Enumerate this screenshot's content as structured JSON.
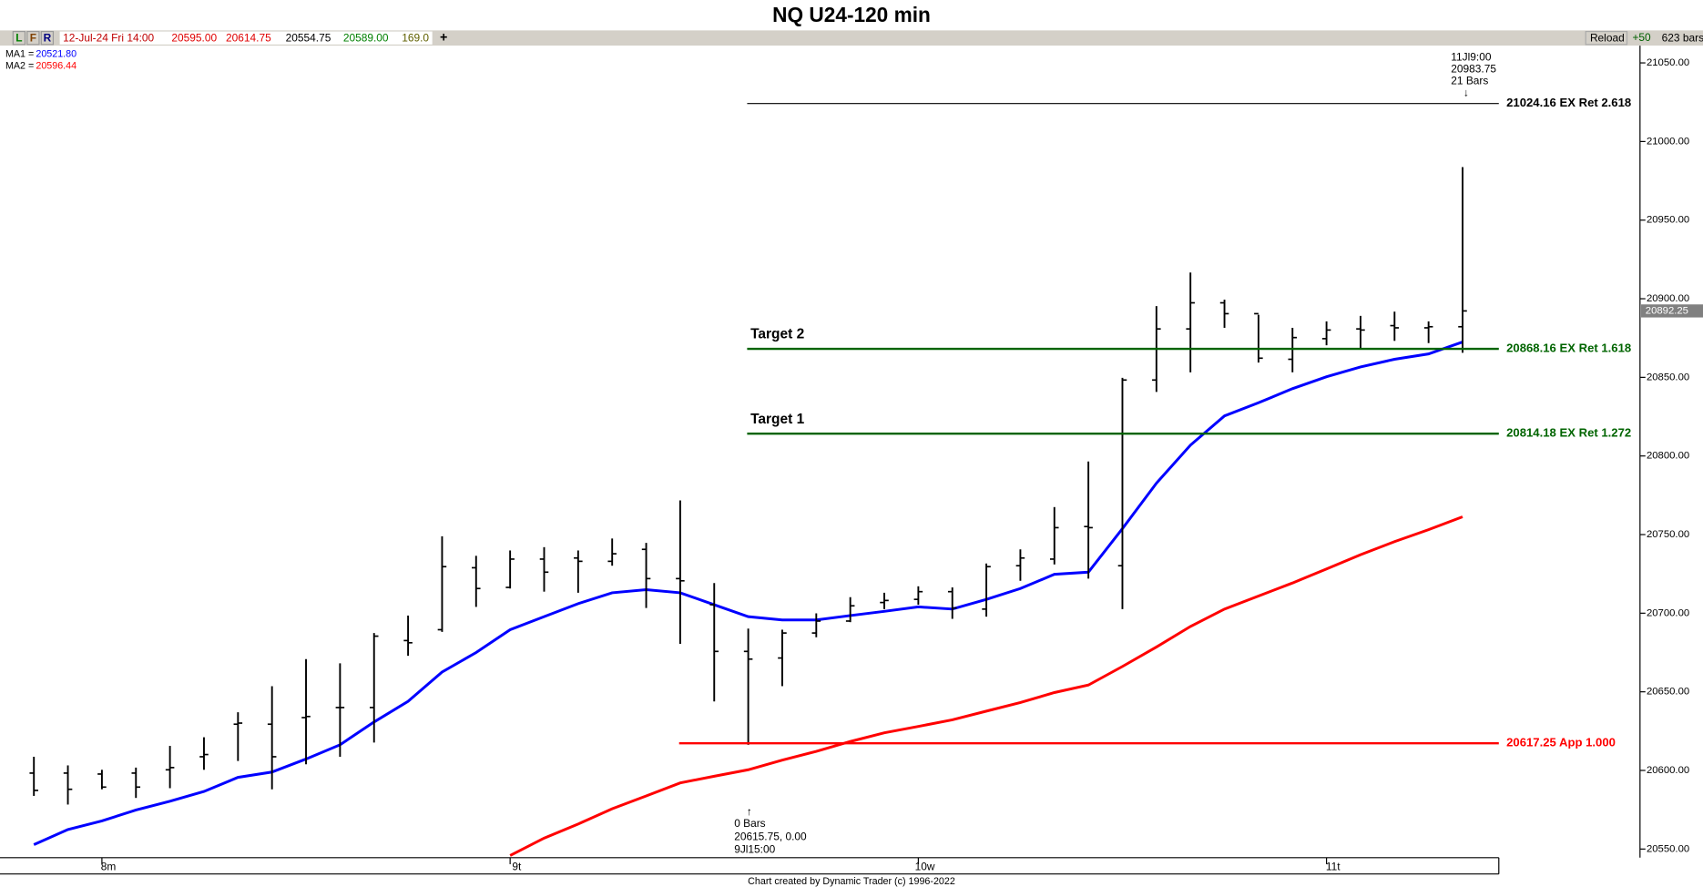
{
  "title": "NQ U24-120 min",
  "toolbar": {
    "buttons": [
      "L",
      "F",
      "R"
    ],
    "date": "12-Jul-24 Fri 14:00",
    "open": "20595.00",
    "high": "20614.75",
    "low": "20554.75",
    "close": "20589.00",
    "volume": "169.0",
    "add": "+",
    "reload": "Reload",
    "step": "+50",
    "bars": "623 bars"
  },
  "footer": "Chart created by Dynamic Trader  (c) 1996-2022",
  "chart_data": {
    "type": "ohlc",
    "categories": [
      null,
      null,
      "8m",
      null,
      null,
      null,
      null,
      null,
      null,
      null,
      null,
      null,
      null,
      null,
      "9t",
      null,
      null,
      null,
      null,
      null,
      null,
      null,
      null,
      null,
      null,
      null,
      "10w",
      null,
      null,
      null,
      null,
      null,
      null,
      null,
      null,
      null,
      null,
      null,
      "11t",
      null,
      null,
      null,
      null
    ],
    "open": [
      20598.3,
      20598.3,
      20597.7,
      20598.3,
      20600.4,
      20608.7,
      20629.4,
      20629.4,
      20633.6,
      20640,
      20640,
      20682.6,
      20689.5,
      20728.9,
      20716.4,
      20734.4,
      20735.1,
      20733,
      20740.6,
      20722,
      20705.4,
      20675.7,
      20671.5,
      20687.4,
      20695,
      20706.8,
      20708.8,
      20713.7,
      20702.6,
      20730.2,
      20734.4,
      20755.1,
      20730.2,
      20848.3,
      20880.8,
      20897.4,
      20890.5,
      20861.5,
      20874.6,
      20880.8,
      20882.9,
      20881.5,
      20882.2
    ],
    "high": [
      20608.7,
      20603.2,
      20600.4,
      20601.8,
      20615.6,
      20621.1,
      20637,
      20653.6,
      20670.8,
      20668.1,
      20687.4,
      20698.5,
      20748.9,
      20736.5,
      20739.9,
      20742,
      20739.9,
      20747.5,
      20744.7,
      20771.7,
      20719.2,
      20690.2,
      20689.5,
      20699.9,
      20710.2,
      20713,
      20717.1,
      20716.4,
      20731.6,
      20740.6,
      20767.5,
      20796.5,
      20849.7,
      20895.3,
      20916.7,
      20899.4,
      20889.8,
      20881.5,
      20885.6,
      20889.1,
      20891.8,
      20885.6,
      20983.75
    ],
    "low": [
      20583.8,
      20578.3,
      20588,
      20582.5,
      20588.7,
      20600.4,
      20606,
      20588,
      20603.9,
      20608.7,
      20617.7,
      20672.9,
      20688.1,
      20704,
      20715.7,
      20713.7,
      20713,
      20730.2,
      20703.3,
      20680.5,
      20643.9,
      20616.3,
      20653.6,
      20684.7,
      20694.3,
      20702.6,
      20705.4,
      20696.4,
      20697.8,
      20720.6,
      20731,
      20722,
      20702.6,
      20840.7,
      20853.2,
      20881.5,
      20859.4,
      20853.2,
      20870.4,
      20868.4,
      20873.2,
      20871.8,
      20865.6
    ],
    "close": [
      20587.3,
      20588,
      20589.4,
      20589.4,
      20601.8,
      20610.1,
      20630.1,
      20608.7,
      20634.3,
      20640,
      20685.4,
      20681.2,
      20729.6,
      20715.7,
      20734.4,
      20726.1,
      20733,
      20737.8,
      20722,
      20720.6,
      20675.7,
      20670.8,
      20687.4,
      20695,
      20704.7,
      20708.1,
      20713.7,
      20703.3,
      20729.6,
      20735.1,
      20754.4,
      20754.4,
      20848.3,
      20880.8,
      20897.4,
      20890.5,
      20862.2,
      20875.3,
      20880.1,
      20880.1,
      20881.5,
      20882.2,
      20892.25
    ],
    "moving_averages": [
      {
        "label": "MA1 =",
        "reading": "20521.80",
        "color": "#0000ff",
        "values": [
          20552.8,
          20562.4,
          20567.9,
          20574.8,
          20580.4,
          20586.6,
          20595.6,
          20599,
          20607.3,
          20616.3,
          20630.8,
          20643.9,
          20662.6,
          20675,
          20689.5,
          20697.8,
          20706.1,
          20713,
          20715,
          20713,
          20705.4,
          20697.8,
          20695.7,
          20695.7,
          20698.5,
          20701.2,
          20704,
          20702.6,
          20708.8,
          20715.7,
          20724.7,
          20726.1,
          20753.7,
          20782.7,
          20806.9,
          20825.5,
          20833.8,
          20842.8,
          20850.4,
          20856.6,
          20861.5,
          20864.9,
          20872.5
        ]
      },
      {
        "label": "MA2 =",
        "reading": "20596.44",
        "color": "#ff0000",
        "values": [
          null,
          null,
          null,
          null,
          null,
          null,
          null,
          null,
          null,
          null,
          null,
          null,
          null,
          null,
          20545.9,
          20556.9,
          20565.9,
          20575.6,
          20583.8,
          20592.1,
          20596.3,
          20600.4,
          20606.6,
          20612.1,
          20618.4,
          20623.9,
          20628,
          20632.2,
          20637.7,
          20643.2,
          20649.5,
          20654.3,
          20666.1,
          20678.5,
          20691.6,
          20702.6,
          20710.9,
          20719.2,
          20728.2,
          20737.2,
          20745.5,
          20753.1,
          20761.3
        ]
      }
    ],
    "levels": [
      {
        "value": 21024.16,
        "label": "21024.16 EX Ret 2.618",
        "color": "#000000"
      },
      {
        "value": 20868.16,
        "label": "20868.16 EX Ret 1.618",
        "color": "#006400",
        "name": "Target 2"
      },
      {
        "value": 20814.18,
        "label": "20814.18 EX Ret 1.272",
        "color": "#006400",
        "name": "Target 1"
      },
      {
        "value": 20617.25,
        "label": "20617.25 App 1.000",
        "color": "#ff0000"
      }
    ],
    "annotations": [
      {
        "arrow": "↓",
        "lines": [
          "11Jl9:00",
          "20983.75",
          "21 Bars"
        ]
      },
      {
        "arrow": "↑",
        "lines": [
          "0 Bars",
          "20615.75, 0.00",
          "9Jl15:00"
        ]
      }
    ],
    "last_price": {
      "value": 20892.25,
      "label": "20892.25"
    },
    "ylim": [
      20544.5,
      21061
    ],
    "yticks": [
      {
        "value": 20550,
        "label": "20550.00"
      },
      {
        "value": 20600,
        "label": "20600.00"
      },
      {
        "value": 20650,
        "label": "20650.00"
      },
      {
        "value": 20700,
        "label": "20700.00"
      },
      {
        "value": 20750,
        "label": "20750.00"
      },
      {
        "value": 20800,
        "label": "20800.00"
      },
      {
        "value": 20850,
        "label": "20850.00"
      },
      {
        "value": 20900,
        "label": "20900.00"
      },
      {
        "value": 20950,
        "label": "20950.00"
      },
      {
        "value": 21000,
        "label": "21000.00"
      },
      {
        "value": 21050,
        "label": "21050.00"
      }
    ]
  }
}
